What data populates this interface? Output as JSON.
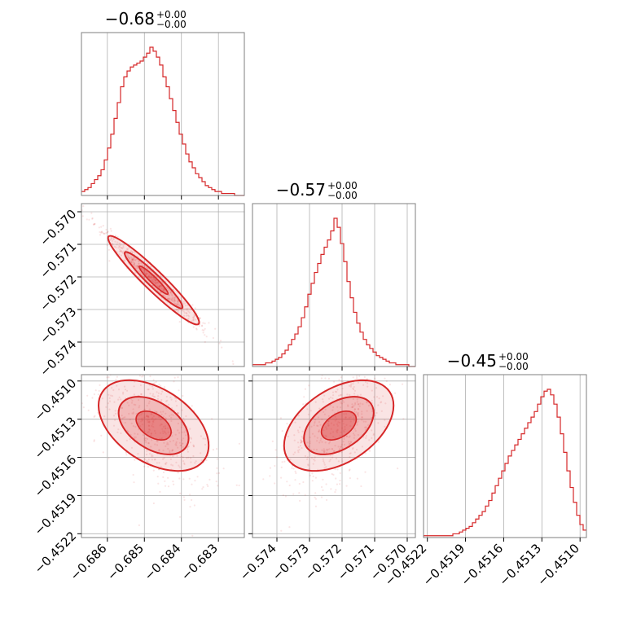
{
  "colors": {
    "accent": "#d62728",
    "frame": "#7f7f7f",
    "grid": "#b0b0b0"
  },
  "chart_data": {
    "type": "corner",
    "grid": true,
    "parameters": [
      {
        "title": "−0.68",
        "title_plus": "+0.00",
        "title_minus": "−0.00",
        "range": [
          -0.6867,
          -0.6823
        ],
        "ticks": [
          -0.686,
          -0.685,
          -0.684,
          -0.683
        ],
        "tick_labels": [
          "−0.686",
          "−0.685",
          "−0.684",
          "−0.683"
        ],
        "center": -0.68475,
        "spread": 0.00055
      },
      {
        "title": "−0.57",
        "title_plus": "+0.00",
        "title_minus": "−0.00",
        "range": [
          -0.57475,
          -0.56975
        ],
        "ticks": [
          -0.574,
          -0.573,
          -0.572,
          -0.571,
          -0.57
        ],
        "tick_labels": [
          "−0.574",
          "−0.573",
          "−0.572",
          "−0.571",
          "−0.570"
        ],
        "center": -0.5721,
        "spread": 0.00062
      },
      {
        "title": "−0.45",
        "title_plus": "+0.00",
        "title_minus": "−0.00",
        "range": [
          -0.45223,
          -0.45095
        ],
        "ticks": [
          -0.4522,
          -0.4519,
          -0.4516,
          -0.4513,
          -0.451
        ],
        "tick_labels": [
          "−0.4522",
          "−0.4519",
          "−0.4516",
          "−0.4513",
          "−0.4510"
        ],
        "center": -0.45135,
        "spread": 0.00019
      }
    ],
    "histograms": [
      {
        "parameter": 0,
        "bins": 50,
        "counts": [
          2,
          3,
          4,
          6,
          8,
          10,
          13,
          18,
          24,
          31,
          39,
          47,
          55,
          60,
          63,
          65,
          66,
          67,
          68,
          70,
          72,
          75,
          73,
          70,
          66,
          60,
          55,
          49,
          43,
          37,
          31,
          26,
          21,
          17,
          14,
          11,
          9,
          7,
          5,
          4,
          3,
          2,
          2,
          1,
          1,
          1,
          1,
          0,
          0,
          0
        ]
      },
      {
        "parameter": 1,
        "bins": 50,
        "counts": [
          1,
          1,
          1,
          1,
          2,
          2,
          3,
          4,
          5,
          7,
          9,
          12,
          15,
          18,
          22,
          27,
          33,
          40,
          46,
          52,
          57,
          62,
          66,
          70,
          75,
          82,
          77,
          68,
          58,
          47,
          38,
          30,
          24,
          19,
          15,
          12,
          10,
          8,
          6,
          5,
          4,
          3,
          2,
          2,
          1,
          1,
          1,
          1,
          0,
          0
        ]
      },
      {
        "parameter": 2,
        "bins": 50,
        "counts": [
          1,
          1,
          1,
          1,
          1,
          1,
          1,
          1,
          1,
          2,
          2,
          3,
          4,
          5,
          6,
          8,
          10,
          12,
          14,
          17,
          20,
          24,
          28,
          32,
          36,
          40,
          44,
          47,
          50,
          53,
          56,
          59,
          62,
          65,
          68,
          72,
          76,
          79,
          80,
          77,
          72,
          65,
          56,
          46,
          36,
          27,
          19,
          12,
          7,
          4
        ]
      }
    ],
    "joint": [
      {
        "x_param": 0,
        "y_param": 1,
        "correlation": -0.98,
        "contour_levels": [
          0.39,
          0.86,
          1.0
        ]
      },
      {
        "x_param": 0,
        "y_param": 2,
        "correlation": -0.55,
        "contour_levels": [
          0.39,
          0.86,
          1.0
        ]
      },
      {
        "x_param": 1,
        "y_param": 2,
        "correlation": 0.55,
        "contour_levels": [
          0.39,
          0.86,
          1.0
        ]
      }
    ]
  }
}
